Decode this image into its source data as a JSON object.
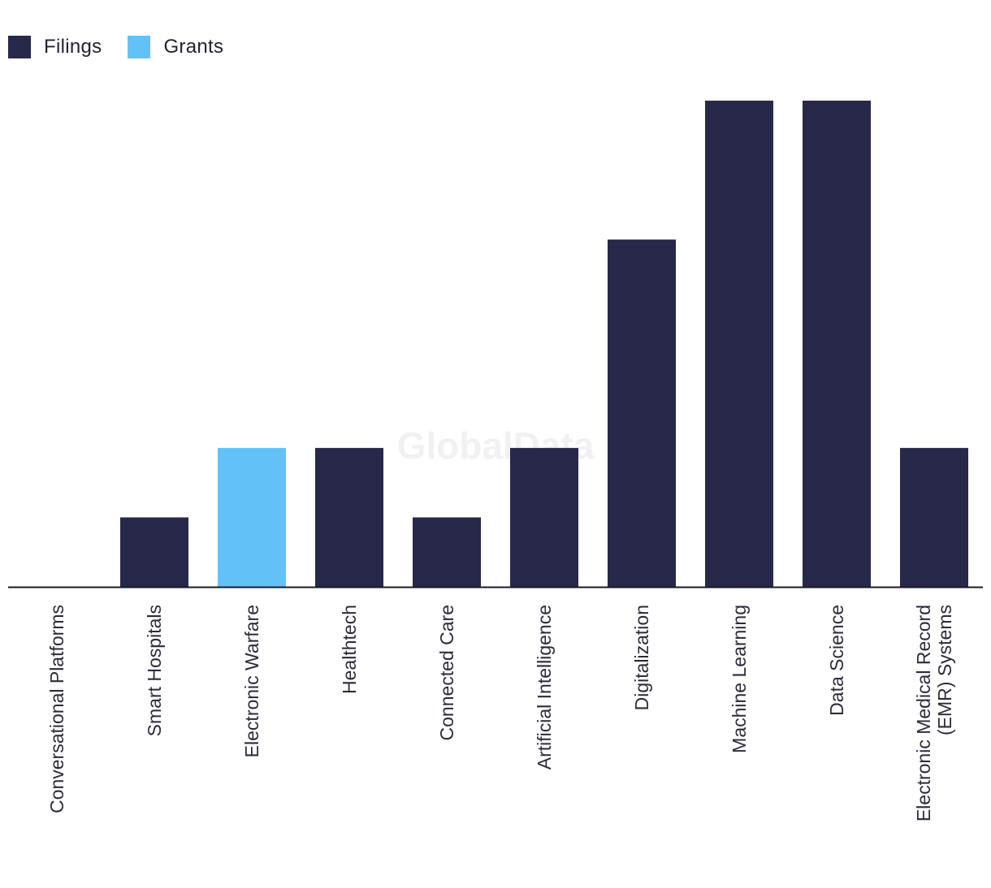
{
  "legend": {
    "filings_label": "Filings",
    "grants_label": "Grants"
  },
  "colors": {
    "filings": "#27284a",
    "grants": "#62c2f8",
    "axis": "#1a1a2a",
    "watermark": "#f1f1f3"
  },
  "watermark": "GlobalData",
  "chart_data": {
    "type": "bar",
    "title": "",
    "xlabel": "",
    "ylabel": "",
    "ylim": [
      0,
      7
    ],
    "categories": [
      "Conversational Platforms",
      "Smart Hospitals",
      "Electronic Warfare",
      "Healthtech",
      "Connected Care",
      "Artificial Intelligence",
      "Digitalization",
      "Machine Learning",
      "Data Science",
      "Electronic Medical Record (EMR) Systems"
    ],
    "category_lines": [
      [
        "Conversational Platforms"
      ],
      [
        "Smart Hospitals"
      ],
      [
        "Electronic Warfare"
      ],
      [
        "Healthtech"
      ],
      [
        "Connected Care"
      ],
      [
        "Artificial Intelligence"
      ],
      [
        "Digitalization"
      ],
      [
        "Machine Learning"
      ],
      [
        "Data Science"
      ],
      [
        "Electronic Medical Record",
        "(EMR) Systems"
      ]
    ],
    "series": [
      {
        "name": "Filings",
        "values": [
          0,
          1,
          0,
          2,
          1,
          2,
          5,
          7,
          7,
          2
        ]
      },
      {
        "name": "Grants",
        "values": [
          0,
          0,
          2,
          0,
          0,
          0,
          0,
          0,
          0,
          0
        ]
      }
    ],
    "legend_position": "top-left",
    "grid": false
  }
}
